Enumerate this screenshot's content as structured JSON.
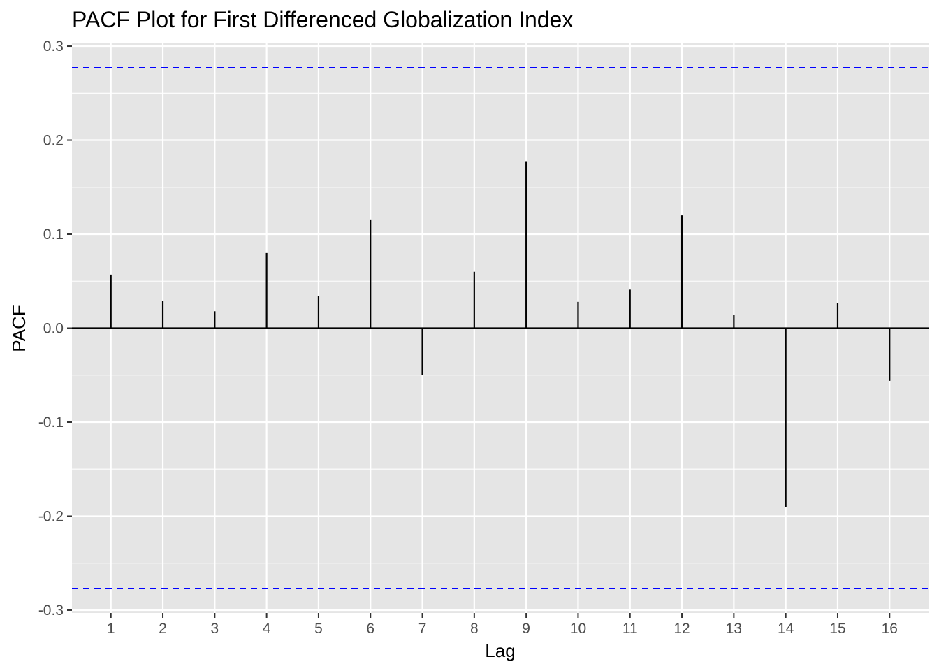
{
  "chart_data": {
    "type": "bar",
    "title": "PACF Plot for First Differenced Globalization Index",
    "xlabel": "Lag",
    "ylabel": "PACF",
    "x": [
      1,
      2,
      3,
      4,
      5,
      6,
      7,
      8,
      9,
      10,
      11,
      12,
      13,
      14,
      15,
      16
    ],
    "values": [
      0.057,
      0.029,
      0.018,
      0.08,
      0.034,
      0.115,
      -0.05,
      0.06,
      0.177,
      0.028,
      0.041,
      0.12,
      0.014,
      -0.19,
      0.027,
      -0.056
    ],
    "xticks": [
      "1",
      "2",
      "3",
      "4",
      "5",
      "6",
      "7",
      "8",
      "9",
      "10",
      "11",
      "12",
      "13",
      "14",
      "15",
      "16"
    ],
    "yticks": [
      {
        "value": 0.3,
        "label": "0.3"
      },
      {
        "value": 0.2,
        "label": "0.2"
      },
      {
        "value": 0.1,
        "label": "0.1"
      },
      {
        "value": 0.0,
        "label": "0.0"
      },
      {
        "value": -0.1,
        "label": "-0.1"
      },
      {
        "value": -0.2,
        "label": "-0.2"
      },
      {
        "value": -0.3,
        "label": "-0.3"
      }
    ],
    "confidence_bound": 0.277,
    "ylim": [
      -0.303,
      0.303
    ],
    "xlim": [
      0.25,
      16.75
    ],
    "grid": true,
    "colors": {
      "panel": "#e5e5e5",
      "grid": "#ffffff",
      "bars": "#000000",
      "bounds": "#0000ff",
      "tick_text": "#4d4d4d"
    }
  }
}
